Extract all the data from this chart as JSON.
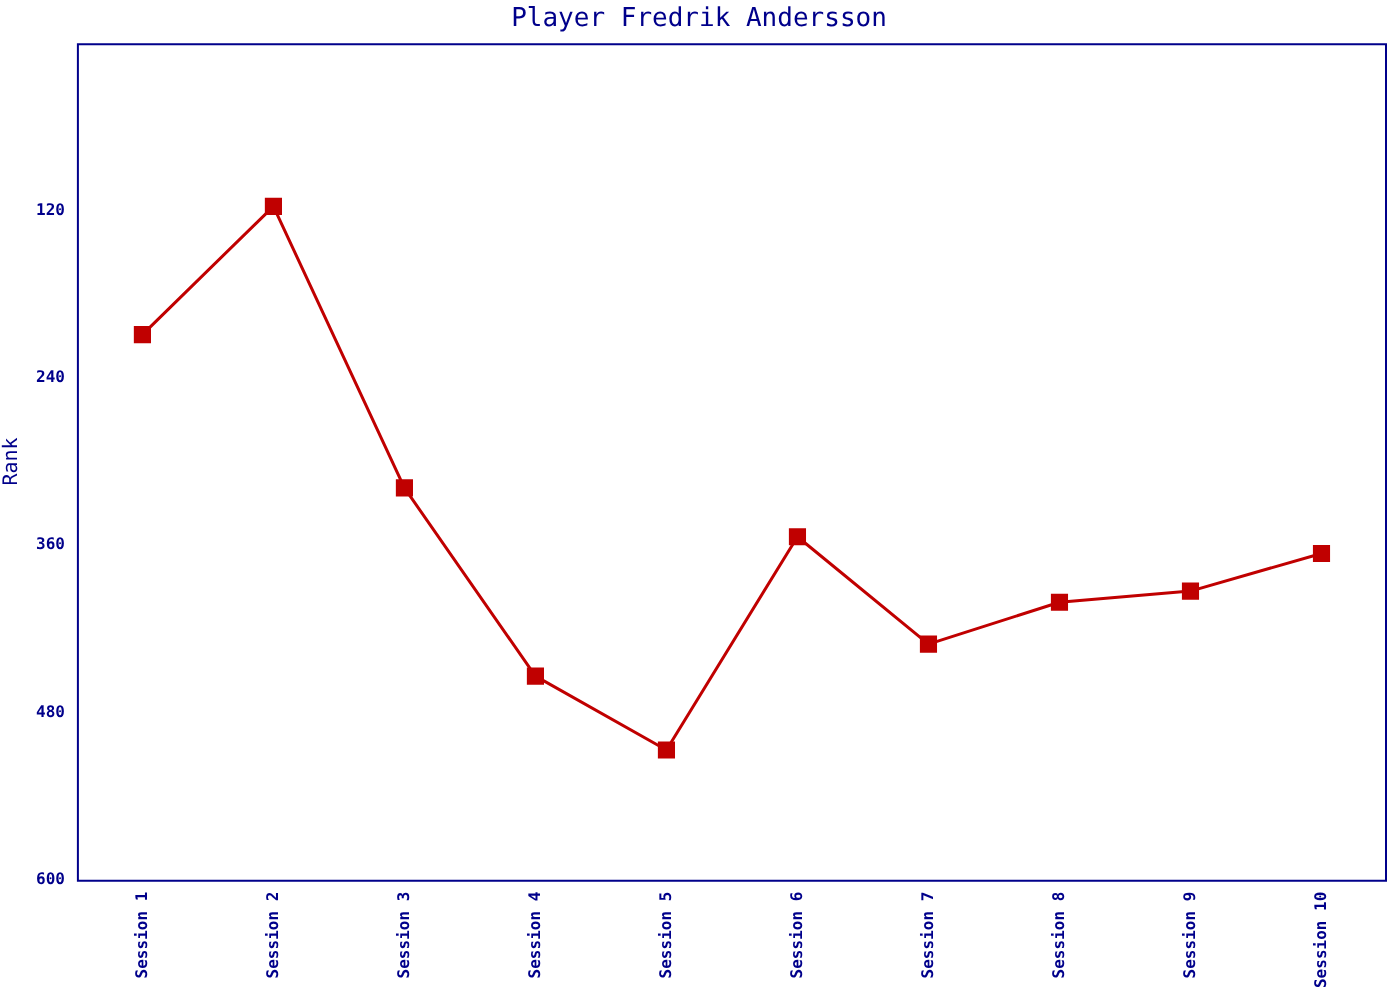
{
  "chart_data": {
    "type": "line",
    "title": "Player Fredrik Andersson",
    "ylabel": "Rank",
    "categories": [
      "Session 1",
      "Session 2",
      "Session 3",
      "Session 4",
      "Session 5",
      "Session 6",
      "Session 7",
      "Session 8",
      "Session 9",
      "Session 10"
    ],
    "series": [
      {
        "color": "#c00000",
        "values": [
          209,
          117,
          319,
          454,
          507,
          354,
          431,
          401,
          393,
          366
        ]
      }
    ],
    "ylim": [
      600,
      0
    ],
    "yticks": [
      120,
      240,
      360,
      480,
      600
    ],
    "grid": false,
    "legend": false,
    "marker": "square",
    "line_style": "solid"
  }
}
